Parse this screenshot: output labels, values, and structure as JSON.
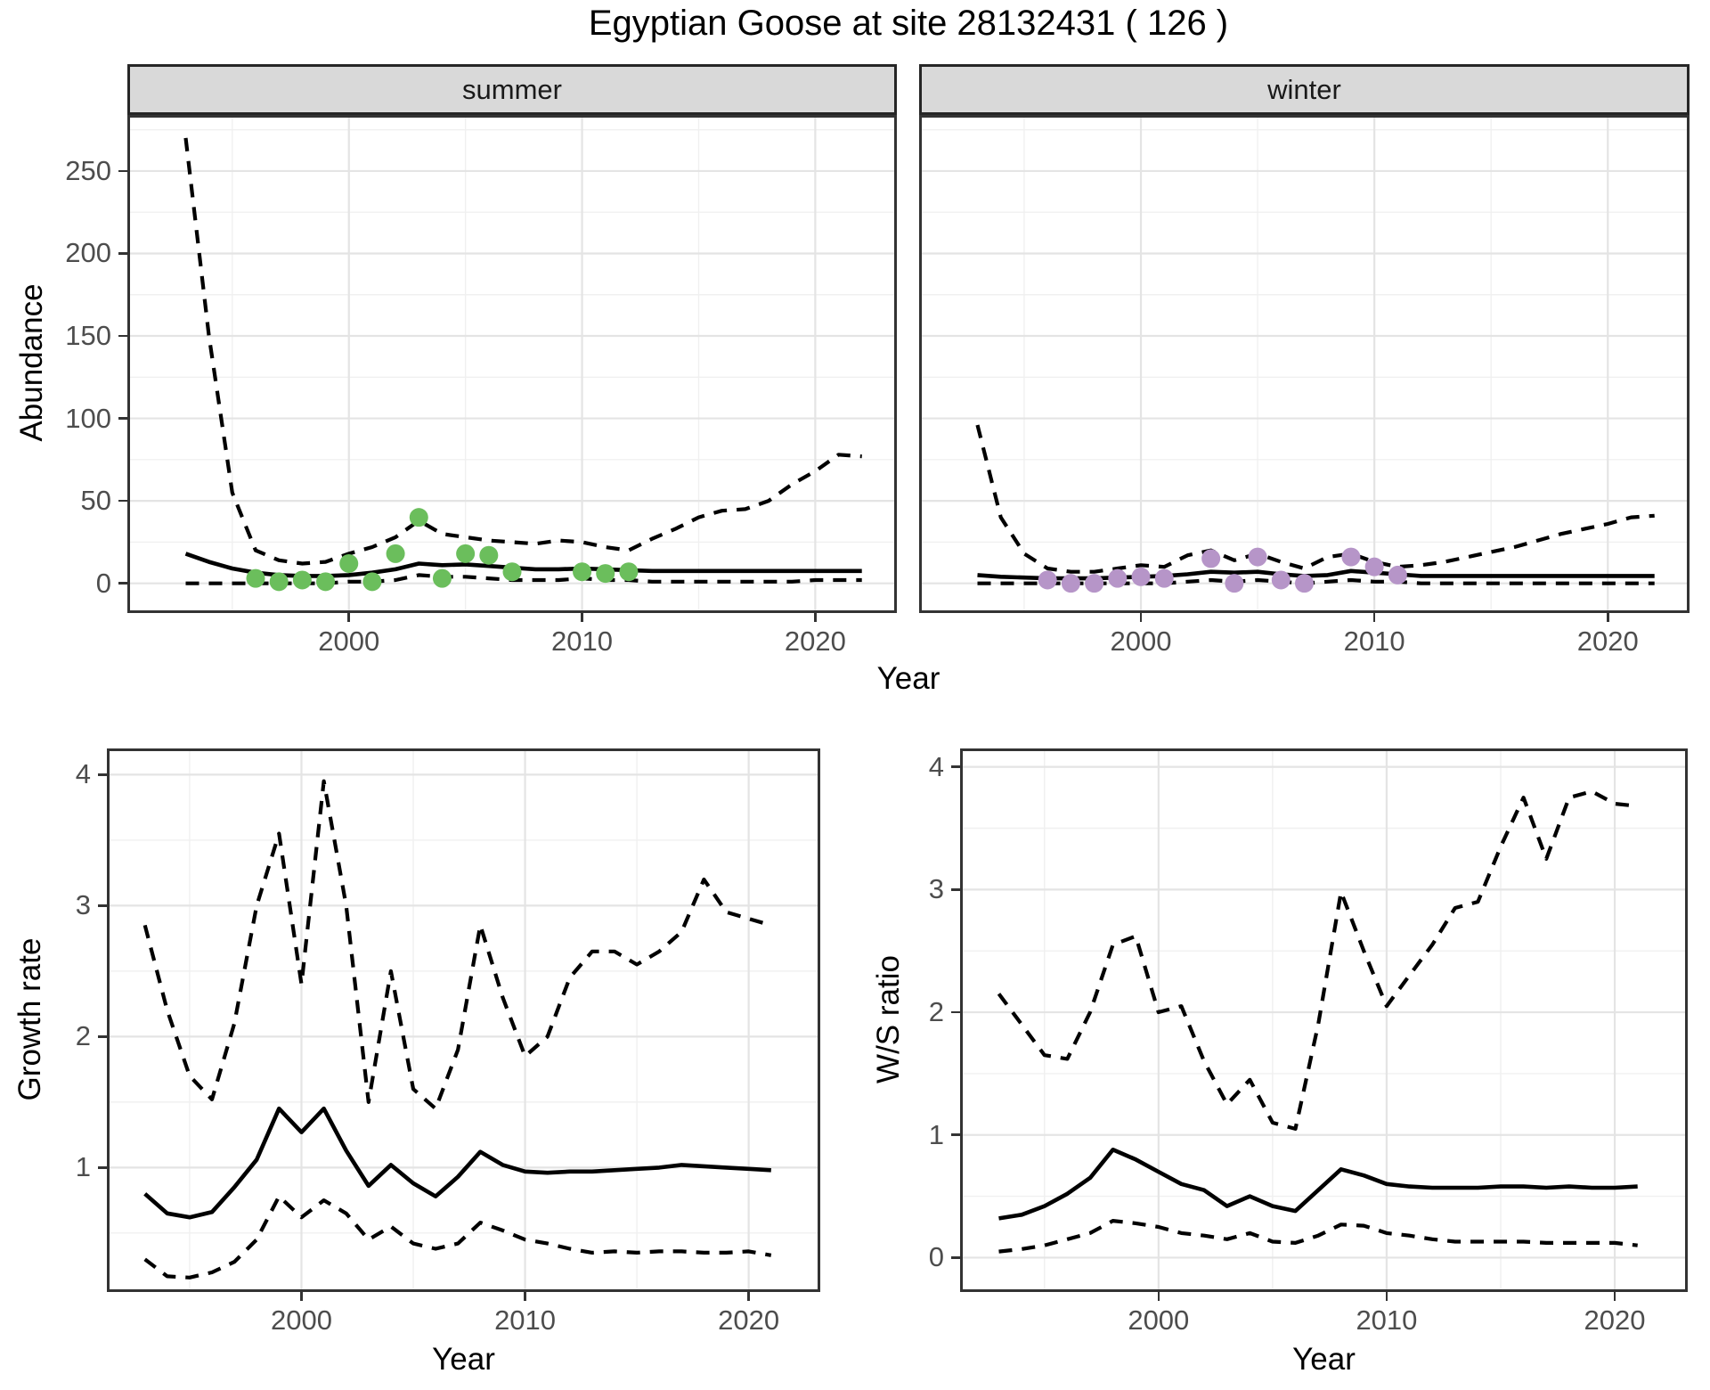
{
  "title": "Egyptian Goose at site 28132431 ( 126 )",
  "colors": {
    "line": "#000000",
    "point_summer": "#6BBE5C",
    "point_winter": "#B695C8",
    "strip_bg": "#D9D9D9",
    "panel_border": "#333333",
    "grid_major": "#E4E4E4",
    "grid_minor": "#F0F0F0",
    "tick_label": "#4D4D4D"
  },
  "chart_data": [
    {
      "id": "abundance_summer",
      "type": "line",
      "facet_label": "summer",
      "ylabel": "Abundance",
      "xlabel": "Year",
      "xlim": [
        1990.5,
        2023.5
      ],
      "ylim": [
        -18,
        284
      ],
      "xticks": [
        2000,
        2010,
        2020
      ],
      "yticks": [
        0,
        50,
        100,
        150,
        200,
        250
      ],
      "xminor": [
        1995,
        2005,
        2015
      ],
      "yminor": [
        25,
        75,
        125,
        175,
        225,
        275
      ],
      "x_years": [
        1993,
        1994,
        1995,
        1996,
        1997,
        1998,
        1999,
        2000,
        2001,
        2002,
        2003,
        2004,
        2005,
        2006,
        2007,
        2008,
        2009,
        2010,
        2011,
        2012,
        2013,
        2014,
        2015,
        2016,
        2017,
        2018,
        2019,
        2020,
        2021,
        2022
      ],
      "series": [
        {
          "name": "fitted",
          "style": "solid",
          "values": [
            18,
            13,
            9,
            6.5,
            5,
            4.5,
            4.5,
            5,
            6.5,
            8.5,
            12,
            11,
            11.5,
            10.5,
            9.5,
            8.5,
            8.5,
            9,
            8.5,
            8,
            7.5,
            7.5,
            7.5,
            7.5,
            7.5,
            7.5,
            7.5,
            7.5,
            7.5,
            7.5
          ]
        },
        {
          "name": "upper_ci",
          "style": "dashed",
          "values": [
            270,
            150,
            55,
            20,
            14,
            12,
            13,
            18,
            22,
            28,
            38,
            30,
            28,
            26,
            25,
            24,
            26,
            25,
            22,
            20,
            27,
            33,
            40,
            44,
            45,
            50,
            60,
            68,
            78,
            77
          ]
        },
        {
          "name": "lower_ci",
          "style": "dashed",
          "values": [
            0,
            0,
            0,
            0,
            0,
            0,
            0,
            1,
            1,
            2,
            5,
            4,
            4,
            3,
            2,
            2,
            2,
            3,
            2,
            2,
            1,
            1,
            1,
            1,
            1,
            1,
            1,
            2,
            2,
            2
          ]
        }
      ],
      "points": {
        "name": "observed_counts",
        "color": "#6BBE5C",
        "years": [
          1996,
          1997,
          1998,
          1999,
          2000,
          2001,
          2002,
          2003,
          2004,
          2005,
          2006,
          2007,
          2010,
          2011,
          2012
        ],
        "values": [
          3,
          1,
          2,
          1,
          12,
          1,
          18,
          40,
          3,
          18,
          17,
          7,
          7,
          6,
          7
        ]
      }
    },
    {
      "id": "abundance_winter",
      "type": "line",
      "facet_label": "winter",
      "ylabel": "Abundance",
      "xlabel": "Year",
      "xlim": [
        1990.5,
        2023.5
      ],
      "ylim": [
        -18,
        284
      ],
      "xticks": [
        2000,
        2010,
        2020
      ],
      "yticks": [
        0,
        50,
        100,
        150,
        200,
        250
      ],
      "xminor": [
        1995,
        2005,
        2015
      ],
      "yminor": [
        25,
        75,
        125,
        175,
        225,
        275
      ],
      "x_years": [
        1993,
        1994,
        1995,
        1996,
        1997,
        1998,
        1999,
        2000,
        2001,
        2002,
        2003,
        2004,
        2005,
        2006,
        2007,
        2008,
        2009,
        2010,
        2011,
        2012,
        2013,
        2014,
        2015,
        2016,
        2017,
        2018,
        2019,
        2020,
        2021,
        2022
      ],
      "series": [
        {
          "name": "fitted",
          "style": "solid",
          "values": [
            5,
            4,
            3.5,
            3,
            3,
            3,
            3.5,
            4,
            4.5,
            5.5,
            7,
            6.5,
            7,
            5.5,
            4.5,
            5,
            7.5,
            6.5,
            5.5,
            4.5,
            4.5,
            4.5,
            4.5,
            4.5,
            4.5,
            4.5,
            4.5,
            4.5,
            4.5,
            4.5
          ]
        },
        {
          "name": "upper_ci",
          "style": "dashed",
          "values": [
            96,
            40,
            18,
            9,
            7,
            7,
            9,
            11,
            10,
            17,
            20,
            14,
            18,
            13,
            9,
            16,
            18,
            13,
            10,
            11,
            13,
            16,
            19,
            22,
            26,
            30,
            33,
            36,
            40,
            41
          ]
        },
        {
          "name": "lower_ci",
          "style": "dashed",
          "values": [
            0,
            0,
            0,
            0,
            0,
            0,
            0,
            0,
            0,
            1,
            2,
            1,
            2,
            1,
            0,
            1,
            2,
            1,
            1,
            0,
            0,
            0,
            0,
            0,
            0,
            0,
            0,
            0,
            0,
            0
          ]
        }
      ],
      "points": {
        "name": "observed_counts",
        "color": "#B695C8",
        "years": [
          1996,
          1997,
          1998,
          1999,
          2000,
          2001,
          2003,
          2004,
          2005,
          2006,
          2007,
          2009,
          2010,
          2011
        ],
        "values": [
          2,
          0,
          0,
          3,
          4,
          3,
          15,
          0,
          16,
          2,
          0,
          16,
          10,
          5
        ]
      }
    },
    {
      "id": "growth_rate",
      "type": "line",
      "ylabel": "Growth rate",
      "xlabel": "Year",
      "xlim": [
        1991.3,
        2023.2
      ],
      "ylim": [
        0.05,
        4.2
      ],
      "xticks": [
        2000,
        2010,
        2020
      ],
      "yticks": [
        1,
        2,
        3,
        4
      ],
      "xminor": [
        1995,
        2005,
        2015
      ],
      "yminor": [
        0.5,
        1.5,
        2.5,
        3.5
      ],
      "x_years": [
        1993,
        1994,
        1995,
        1996,
        1997,
        1998,
        1999,
        2000,
        2001,
        2002,
        2003,
        2004,
        2005,
        2006,
        2007,
        2008,
        2009,
        2010,
        2011,
        2012,
        2013,
        2014,
        2015,
        2016,
        2017,
        2018,
        2019,
        2020,
        2021
      ],
      "series": [
        {
          "name": "fitted",
          "style": "solid",
          "values": [
            0.8,
            0.65,
            0.62,
            0.66,
            0.85,
            1.06,
            1.45,
            1.27,
            1.45,
            1.13,
            0.86,
            1.02,
            0.88,
            0.78,
            0.93,
            1.12,
            1.02,
            0.97,
            0.96,
            0.97,
            0.97,
            0.98,
            0.99,
            1.0,
            1.02,
            1.01,
            1.0,
            0.99,
            0.98
          ]
        },
        {
          "name": "upper_ci",
          "style": "dashed",
          "values": [
            2.85,
            2.2,
            1.7,
            1.52,
            2.1,
            3.0,
            3.55,
            2.4,
            3.95,
            3.0,
            1.5,
            2.5,
            1.6,
            1.45,
            1.9,
            2.85,
            2.3,
            1.85,
            2.0,
            2.45,
            2.65,
            2.65,
            2.55,
            2.65,
            2.8,
            3.2,
            2.95,
            2.9,
            2.85
          ]
        },
        {
          "name": "lower_ci",
          "style": "dashed",
          "values": [
            0.3,
            0.17,
            0.16,
            0.2,
            0.28,
            0.45,
            0.78,
            0.62,
            0.75,
            0.65,
            0.45,
            0.55,
            0.42,
            0.38,
            0.42,
            0.58,
            0.52,
            0.45,
            0.42,
            0.38,
            0.35,
            0.36,
            0.35,
            0.36,
            0.36,
            0.35,
            0.35,
            0.36,
            0.33
          ]
        }
      ]
    },
    {
      "id": "ws_ratio",
      "type": "line",
      "ylabel": "W/S ratio",
      "xlabel": "Year",
      "xlim": [
        1991.3,
        2023.2
      ],
      "ylim": [
        -0.28,
        4.15
      ],
      "xticks": [
        2000,
        2010,
        2020
      ],
      "yticks": [
        0,
        1,
        2,
        3,
        4
      ],
      "xminor": [
        1995,
        2005,
        2015
      ],
      "yminor": [
        0.5,
        1.5,
        2.5,
        3.5
      ],
      "x_years": [
        1993,
        1994,
        1995,
        1996,
        1997,
        1998,
        1999,
        2000,
        2001,
        2002,
        2003,
        2004,
        2005,
        2006,
        2007,
        2008,
        2009,
        2010,
        2011,
        2012,
        2013,
        2014,
        2015,
        2016,
        2017,
        2018,
        2019,
        2020,
        2021
      ],
      "series": [
        {
          "name": "fitted",
          "style": "solid",
          "values": [
            0.32,
            0.35,
            0.42,
            0.52,
            0.65,
            0.88,
            0.8,
            0.7,
            0.6,
            0.55,
            0.42,
            0.5,
            0.42,
            0.38,
            0.55,
            0.72,
            0.67,
            0.6,
            0.58,
            0.57,
            0.57,
            0.57,
            0.58,
            0.58,
            0.57,
            0.58,
            0.57,
            0.57,
            0.58
          ]
        },
        {
          "name": "upper_ci",
          "style": "dashed",
          "values": [
            2.15,
            1.9,
            1.65,
            1.62,
            2.0,
            2.55,
            2.62,
            2.0,
            2.05,
            1.6,
            1.25,
            1.45,
            1.1,
            1.05,
            1.9,
            2.98,
            2.5,
            2.05,
            2.3,
            2.55,
            2.85,
            2.9,
            3.35,
            3.75,
            3.25,
            3.75,
            3.8,
            3.7,
            3.68
          ]
        },
        {
          "name": "lower_ci",
          "style": "dashed",
          "values": [
            0.05,
            0.07,
            0.1,
            0.15,
            0.2,
            0.3,
            0.28,
            0.25,
            0.2,
            0.18,
            0.15,
            0.2,
            0.13,
            0.12,
            0.18,
            0.27,
            0.26,
            0.2,
            0.18,
            0.15,
            0.13,
            0.13,
            0.13,
            0.13,
            0.12,
            0.12,
            0.12,
            0.12,
            0.1
          ]
        }
      ]
    }
  ]
}
